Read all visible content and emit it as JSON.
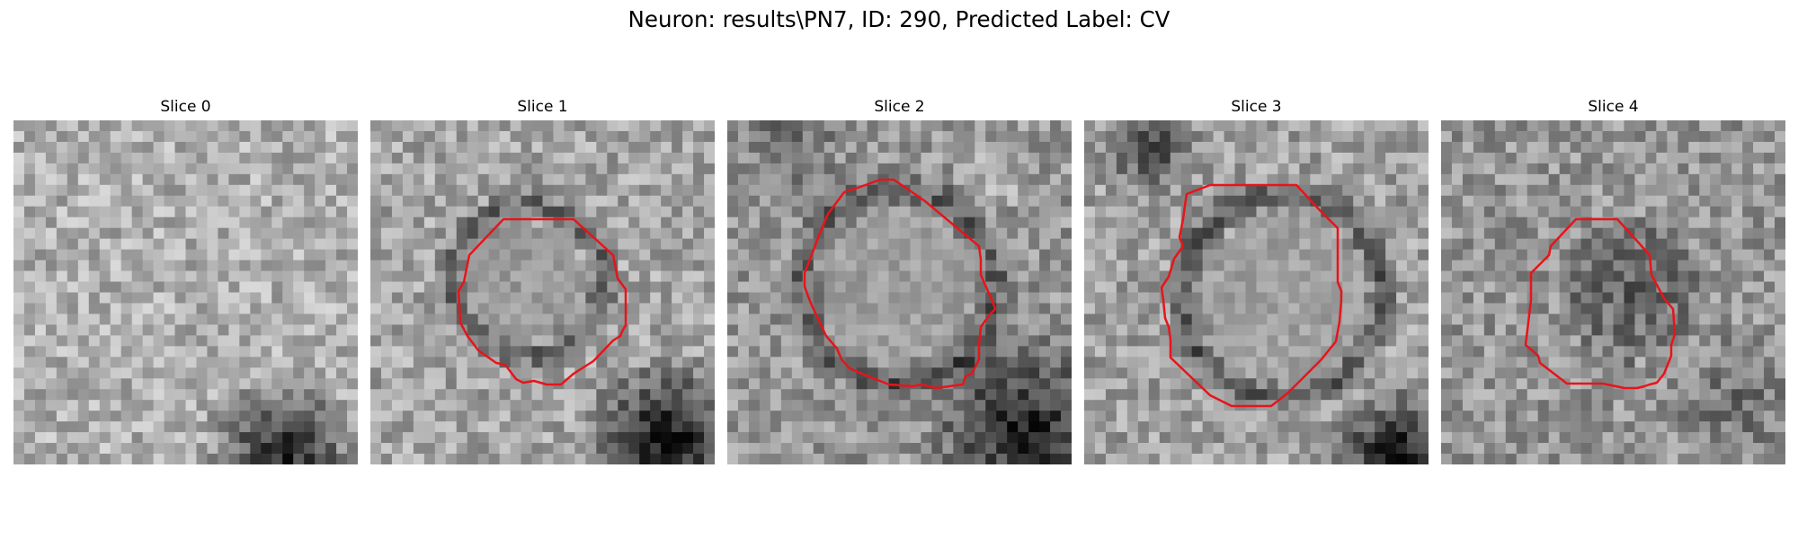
{
  "figure": {
    "title": "Neuron: results\\PN7, ID: 290, Predicted Label: CV"
  },
  "panels": [
    {
      "title": "Slice 0",
      "has_contour": false
    },
    {
      "title": "Slice 1",
      "has_contour": true
    },
    {
      "title": "Slice 2",
      "has_contour": true
    },
    {
      "title": "Slice 3",
      "has_contour": true
    },
    {
      "title": "Slice 4",
      "has_contour": true
    }
  ],
  "colors": {
    "contour": "#e8141a",
    "background": "#ffffff"
  }
}
